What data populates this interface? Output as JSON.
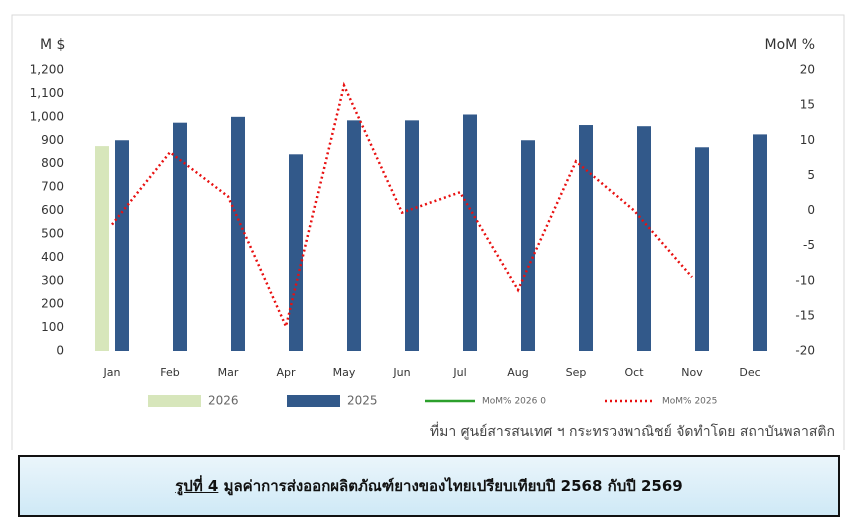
{
  "chart_data": {
    "type": "bar",
    "y_label": "M $",
    "y2_label": "MoM %",
    "categories": [
      "Jan",
      "Feb",
      "Mar",
      "Apr",
      "May",
      "Jun",
      "Jul",
      "Aug",
      "Sep",
      "Oct",
      "Nov",
      "Dec"
    ],
    "series": [
      {
        "name": "2026",
        "color": "#d7e6bb",
        "values": [
          875,
          null,
          null,
          null,
          null,
          null,
          null,
          null,
          null,
          null,
          null,
          null
        ]
      },
      {
        "name": "2025",
        "color": "#32598a",
        "values": [
          900,
          975,
          1000,
          840,
          985,
          985,
          1010,
          900,
          965,
          960,
          870,
          925
        ]
      },
      {
        "name": "MoM% 2026 0",
        "type": "line",
        "axis": "y2",
        "color": "#2ca02c",
        "values": [
          null,
          null,
          null,
          null,
          null,
          null,
          null,
          null,
          null,
          null,
          null,
          null
        ]
      },
      {
        "name": "MoM% 2025",
        "type": "line",
        "axis": "y2",
        "color": "#e81010",
        "dotted": true,
        "values": [
          -2,
          8.3,
          2,
          -16.5,
          17.8,
          -0.3,
          2.6,
          -11.3,
          7,
          0,
          -9.5,
          null
        ]
      }
    ],
    "ylim": [
      0,
      1200
    ],
    "yticks": [
      0,
      100,
      200,
      300,
      400,
      500,
      600,
      700,
      800,
      900,
      {
        "value": 1000,
        "label": "1,000"
      },
      {
        "value": 1100,
        "label": "1,100"
      },
      {
        "value": 1200,
        "label": "1,200"
      }
    ],
    "y2lim": [
      -20,
      20
    ],
    "y2ticks": [
      -20,
      -15,
      -10,
      -5,
      0,
      5,
      10,
      15,
      20
    ],
    "grid": false,
    "legend": "bottom",
    "source": "ที่มา ศูนย์สารสนเทศ ฯ กระทรวงพาณิชย์ จัดทำโดย สถาบันพลาสติก"
  },
  "caption": {
    "label": "รูปที่ 4",
    "text": "มูลค่าการส่งออกผลิตภัณฑ์ยางของไทยเปรียบเทียบปี 2568 กับปี 2569"
  }
}
